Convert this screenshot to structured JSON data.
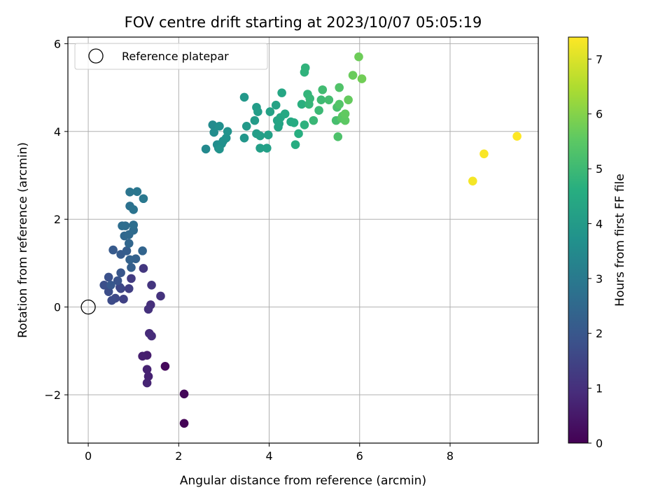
{
  "chart_data": {
    "type": "scatter",
    "title": "FOV centre drift starting at 2023/10/07 05:05:19",
    "xlabel": "Angular distance from reference (arcmin)",
    "ylabel": "Rotation from reference (arcmin)",
    "xlim": [
      -0.45,
      9.95
    ],
    "ylim": [
      -3.1,
      6.15
    ],
    "xticks": [
      0,
      2,
      4,
      6,
      8
    ],
    "yticks": [
      -2,
      0,
      2,
      4,
      6
    ],
    "xtick_labels": [
      "0",
      "2",
      "4",
      "6",
      "8"
    ],
    "ytick_labels": [
      "−2",
      "0",
      "2",
      "4",
      "6"
    ],
    "grid": true,
    "legend": {
      "placement": "top-left",
      "entries": [
        "Reference platepar"
      ]
    },
    "reference_point": {
      "x": 0,
      "y": 0
    },
    "colorbar": {
      "label": "Hours from first FF file",
      "colormap": "viridis",
      "range": [
        0,
        7.4
      ],
      "ticks": [
        0,
        1,
        2,
        3,
        4,
        5,
        6,
        7
      ],
      "tick_labels": [
        "0",
        "1",
        "2",
        "3",
        "4",
        "5",
        "6",
        "7"
      ]
    },
    "points": [
      [
        2.12,
        -2.65,
        0.05
      ],
      [
        2.12,
        -1.98,
        0.12
      ],
      [
        1.7,
        -1.35,
        0.18
      ],
      [
        1.3,
        -1.1,
        0.6
      ],
      [
        1.2,
        -1.12,
        0.65
      ],
      [
        1.3,
        -1.42,
        0.7
      ],
      [
        1.33,
        -1.58,
        0.72
      ],
      [
        1.3,
        -1.73,
        0.75
      ],
      [
        1.35,
        -0.6,
        0.9
      ],
      [
        1.4,
        -0.66,
        0.95
      ],
      [
        1.38,
        0.05,
        1.0
      ],
      [
        1.33,
        -0.05,
        1.05
      ],
      [
        1.6,
        0.25,
        1.1
      ],
      [
        1.4,
        0.5,
        1.15
      ],
      [
        1.22,
        0.88,
        1.2
      ],
      [
        0.95,
        0.65,
        1.3
      ],
      [
        0.9,
        0.42,
        1.4
      ],
      [
        0.78,
        0.18,
        1.45
      ],
      [
        0.72,
        0.42,
        1.55
      ],
      [
        0.7,
        0.45,
        1.6
      ],
      [
        0.6,
        0.2,
        1.65
      ],
      [
        0.52,
        0.15,
        1.7
      ],
      [
        0.45,
        0.35,
        1.75
      ],
      [
        0.35,
        0.5,
        1.8
      ],
      [
        0.45,
        0.68,
        1.85
      ],
      [
        0.65,
        0.6,
        1.9
      ],
      [
        0.72,
        0.78,
        2.0
      ],
      [
        0.5,
        0.5,
        2.05
      ],
      [
        0.55,
        1.3,
        2.1
      ],
      [
        0.72,
        1.2,
        2.15
      ],
      [
        0.85,
        1.28,
        2.2
      ],
      [
        0.95,
        0.9,
        2.25
      ],
      [
        1.05,
        1.1,
        2.3
      ],
      [
        0.92,
        1.08,
        2.35
      ],
      [
        1.2,
        1.28,
        2.4
      ],
      [
        0.9,
        1.45,
        2.45
      ],
      [
        0.8,
        1.62,
        2.5
      ],
      [
        0.9,
        1.65,
        2.55
      ],
      [
        1.0,
        1.75,
        2.6
      ],
      [
        0.82,
        1.85,
        2.62
      ],
      [
        0.75,
        1.85,
        2.65
      ],
      [
        1.0,
        1.87,
        2.7
      ],
      [
        0.92,
        2.3,
        2.78
      ],
      [
        1.0,
        2.22,
        2.82
      ],
      [
        0.92,
        2.62,
        2.88
      ],
      [
        1.08,
        2.63,
        2.92
      ],
      [
        1.22,
        2.47,
        2.98
      ],
      [
        2.6,
        3.6,
        3.5
      ],
      [
        2.75,
        4.15,
        3.55
      ],
      [
        2.78,
        3.98,
        3.6
      ],
      [
        2.85,
        3.7,
        3.62
      ],
      [
        2.88,
        3.62,
        3.65
      ],
      [
        2.9,
        4.12,
        3.68
      ],
      [
        2.95,
        3.72,
        3.7
      ],
      [
        2.98,
        3.78,
        3.72
      ],
      [
        3.05,
        3.85,
        3.75
      ],
      [
        3.08,
        4.0,
        3.78
      ],
      [
        2.9,
        3.6,
        3.8
      ],
      [
        3.45,
        3.85,
        3.9
      ],
      [
        3.45,
        4.78,
        3.95
      ],
      [
        3.5,
        4.12,
        4.0
      ],
      [
        3.68,
        4.25,
        4.05
      ],
      [
        3.72,
        4.55,
        4.08
      ],
      [
        3.75,
        4.45,
        4.1
      ],
      [
        3.72,
        3.95,
        4.12
      ],
      [
        3.8,
        3.9,
        4.15
      ],
      [
        3.8,
        3.62,
        4.18
      ],
      [
        3.95,
        3.62,
        4.2
      ],
      [
        3.98,
        3.92,
        4.22
      ],
      [
        4.02,
        4.45,
        4.25
      ],
      [
        4.15,
        4.6,
        4.28
      ],
      [
        4.18,
        4.25,
        4.3
      ],
      [
        4.2,
        4.1,
        4.32
      ],
      [
        4.22,
        4.18,
        4.35
      ],
      [
        4.25,
        4.32,
        4.38
      ],
      [
        4.28,
        4.88,
        4.4
      ],
      [
        4.35,
        4.4,
        4.45
      ],
      [
        4.48,
        4.22,
        4.5
      ],
      [
        4.55,
        4.2,
        4.55
      ],
      [
        4.58,
        3.7,
        4.6
      ],
      [
        4.65,
        3.95,
        4.65
      ],
      [
        4.72,
        4.62,
        4.7
      ],
      [
        4.78,
        4.15,
        4.75
      ],
      [
        4.78,
        5.35,
        4.78
      ],
      [
        4.8,
        5.45,
        4.8
      ],
      [
        4.85,
        4.85,
        4.85
      ],
      [
        4.88,
        4.62,
        4.88
      ],
      [
        4.9,
        4.75,
        4.9
      ],
      [
        4.98,
        4.25,
        4.95
      ],
      [
        5.1,
        4.48,
        5.0
      ],
      [
        5.15,
        4.72,
        5.05
      ],
      [
        5.18,
        4.95,
        5.1
      ],
      [
        5.32,
        4.72,
        5.15
      ],
      [
        5.48,
        4.25,
        5.2
      ],
      [
        5.5,
        4.55,
        5.25
      ],
      [
        5.52,
        3.88,
        5.3
      ],
      [
        5.55,
        5.0,
        5.35
      ],
      [
        5.55,
        4.62,
        5.4
      ],
      [
        5.6,
        4.3,
        5.45
      ],
      [
        5.62,
        4.35,
        5.5
      ],
      [
        5.68,
        4.25,
        5.55
      ],
      [
        5.68,
        4.4,
        5.6
      ],
      [
        5.75,
        4.72,
        5.65
      ],
      [
        5.85,
        5.28,
        5.7
      ],
      [
        5.98,
        5.7,
        5.75
      ],
      [
        6.05,
        5.2,
        5.8
      ],
      [
        8.5,
        2.87,
        7.3
      ],
      [
        8.75,
        3.49,
        7.35
      ],
      [
        9.48,
        3.89,
        7.4
      ]
    ],
    "colors": {
      "reference_marker_edge": "#000000",
      "grid": "#b0b0b0",
      "axes": "#000000"
    }
  }
}
